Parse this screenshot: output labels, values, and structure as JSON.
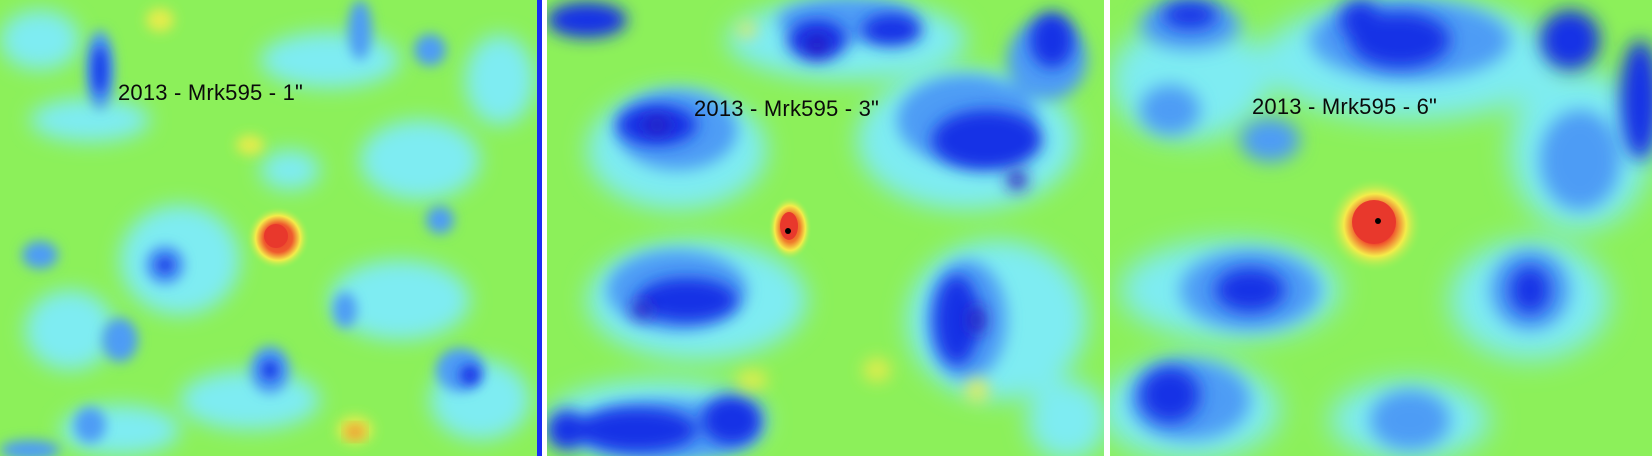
{
  "panels": [
    {
      "label": "2013 - Mrk595 - 1\""
    },
    {
      "label": "2013 - Mrk595 - 3\""
    },
    {
      "label": "2013 - Mrk595 - 6\""
    }
  ],
  "colors": {
    "background": "#8cf05a",
    "cyan": "#7eecf2",
    "light_blue": "#4e9cf5",
    "blue": "#1530e6",
    "deep_blue": "#2a1fbe",
    "yellow": "#f4ec4a",
    "orange": "#f07a2c",
    "red": "#e8382c",
    "peak": "#000000",
    "blue_divider": "#1a2cf2"
  }
}
